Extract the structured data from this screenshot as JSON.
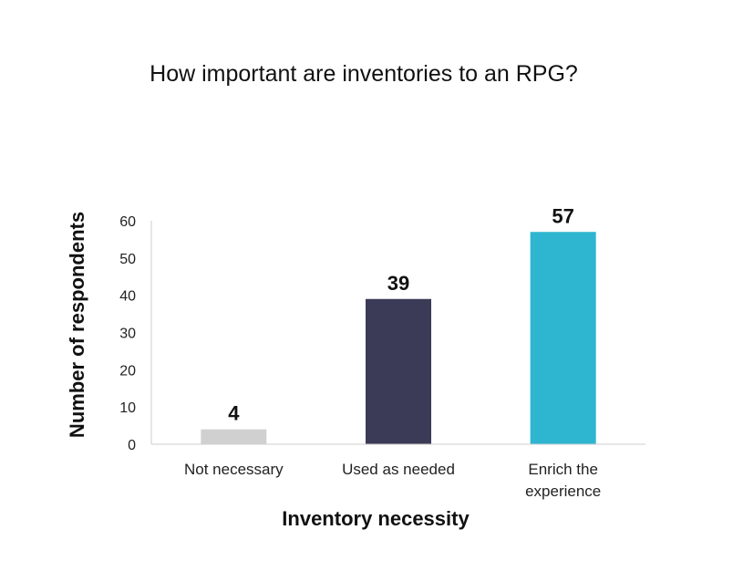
{
  "chart_data": {
    "type": "bar",
    "title": "How important are inventories to an RPG?",
    "xlabel": "Inventory necessity",
    "ylabel": "Number of respondents",
    "ylim": [
      0,
      60
    ],
    "yticks": [
      0,
      10,
      20,
      30,
      40,
      50,
      60
    ],
    "categories": [
      [
        "Not necessary"
      ],
      [
        "Used as needed"
      ],
      [
        "Enrich the",
        "experience"
      ]
    ],
    "values": [
      4,
      39,
      57
    ],
    "value_labels": [
      "4",
      "39",
      "57"
    ],
    "colors": [
      "#d0d0d0",
      "#3b3b57",
      "#2eb5cf"
    ],
    "grid": false,
    "legend": "none"
  }
}
